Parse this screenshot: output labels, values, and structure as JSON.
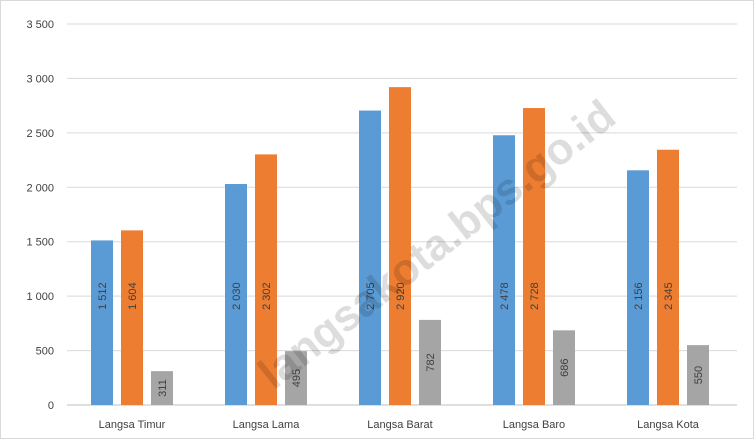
{
  "watermark": "langsakota.bps.go.id",
  "colors": {
    "series": [
      "#5b9bd5",
      "#ed7d31",
      "#a5a5a5"
    ],
    "grid": "#d9d9d9",
    "axis": "#bfbfbf",
    "label": "#404040"
  },
  "chart_data": {
    "type": "bar",
    "title": "",
    "xlabel": "",
    "ylabel": "",
    "ylim": [
      0,
      3500
    ],
    "yticks": [
      0,
      500,
      1000,
      1500,
      2000,
      2500,
      3000,
      3500
    ],
    "ytick_labels": [
      "0",
      "500",
      "1 000",
      "1 500",
      "2 000",
      "2 500",
      "3 000",
      "3 500"
    ],
    "grid": true,
    "legend": "none",
    "categories": [
      "Langsa Timur",
      "Langsa Lama",
      "Langsa Barat",
      "Langsa Baro",
      "Langsa Kota"
    ],
    "series": [
      {
        "values": [
          1512,
          2030,
          2705,
          2478,
          2156
        ],
        "labels": [
          "1 512",
          "2 030",
          "2 705",
          "2 478",
          "2 156"
        ]
      },
      {
        "values": [
          1604,
          2302,
          2920,
          2728,
          2345
        ],
        "labels": [
          "1 604",
          "2 302",
          "2 920",
          "2 728",
          "2 345"
        ]
      },
      {
        "values": [
          311,
          495,
          782,
          686,
          550
        ],
        "labels": [
          "311",
          "495",
          "782",
          "686",
          "550"
        ]
      }
    ]
  }
}
